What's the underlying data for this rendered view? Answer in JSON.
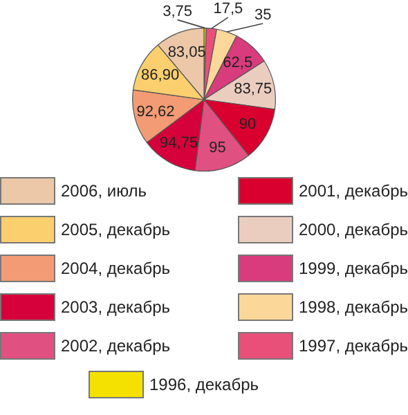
{
  "chart_data": {
    "type": "pie",
    "categories": [
      "1996, декабрь",
      "1997, декабрь",
      "1998, декабрь",
      "1999, декабрь",
      "2000, декабрь",
      "2001, декабрь",
      "2002, декабрь",
      "2003, декабрь",
      "2004, декабрь",
      "2005, декабрь",
      "2006, июль"
    ],
    "values": [
      3.75,
      17.5,
      35,
      62.5,
      83.75,
      90,
      95,
      94.75,
      92.62,
      86.9,
      83.05
    ],
    "value_labels": [
      "3,75",
      "17,5",
      "35",
      "62,5",
      "83,75",
      "90",
      "95",
      "94,75",
      "92,62",
      "86,90",
      "83,05"
    ],
    "colors": [
      "#f5e100",
      "#e8507a",
      "#fbd89a",
      "#d83c7c",
      "#ebcdc0",
      "#d9002f",
      "#e05080",
      "#d6003a",
      "#f29b74",
      "#fbcf6e",
      "#ecc8a8"
    ],
    "legend": "bottom"
  }
}
